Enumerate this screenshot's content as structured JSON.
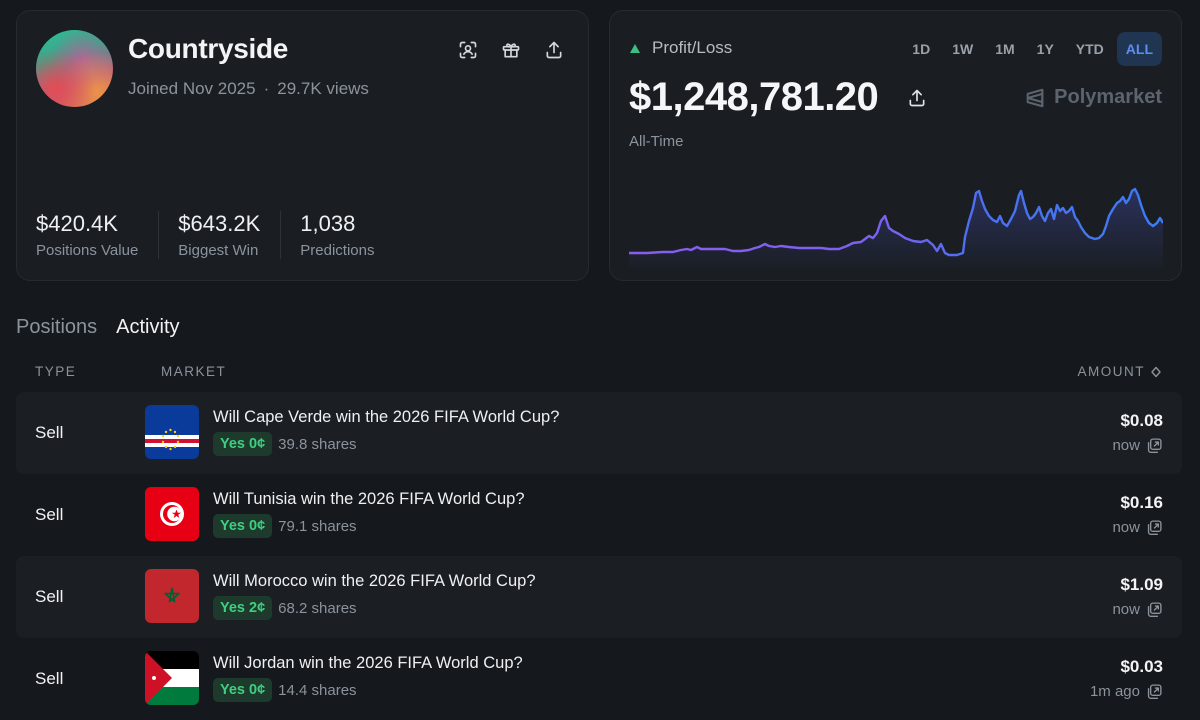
{
  "profile": {
    "name": "Countryside",
    "joined": "Joined Nov 2025",
    "separator": "·",
    "views": "29.7K views",
    "stats": [
      {
        "value": "$420.4K",
        "label": "Positions Value"
      },
      {
        "value": "$643.2K",
        "label": "Biggest Win"
      },
      {
        "value": "1,038",
        "label": "Predictions"
      }
    ],
    "actions": [
      "scan-icon",
      "gift-icon",
      "share-icon"
    ]
  },
  "pnl": {
    "label": "Profit/Loss",
    "amount": "$1,248,781.20",
    "period": "All-Time",
    "brand": "Polymarket",
    "ranges": [
      "1D",
      "1W",
      "1M",
      "1Y",
      "YTD",
      "ALL"
    ],
    "active_range": "ALL",
    "colors": {
      "line_start": "#8a5cf0",
      "line_end": "#3b7cf5",
      "up": "#3fbf7f"
    }
  },
  "tabs": [
    "Positions",
    "Activity"
  ],
  "active_tab": "Activity",
  "table": {
    "headers": {
      "type": "TYPE",
      "market": "MARKET",
      "amount": "AMOUNT"
    },
    "rows": [
      {
        "type": "Sell",
        "title": "Will Cape Verde win the 2026 FIFA World Cup?",
        "outcome": "Yes 0¢",
        "shares": "39.8 shares",
        "amount": "$0.08",
        "time": "now",
        "flag": "cape-verde-flag-icon"
      },
      {
        "type": "Sell",
        "title": "Will Tunisia win the 2026 FIFA World Cup?",
        "outcome": "Yes 0¢",
        "shares": "79.1 shares",
        "amount": "$0.16",
        "time": "now",
        "flag": "tunisia-flag-icon"
      },
      {
        "type": "Sell",
        "title": "Will Morocco win the 2026 FIFA World Cup?",
        "outcome": "Yes 2¢",
        "shares": "68.2 shares",
        "amount": "$1.09",
        "time": "now",
        "flag": "morocco-flag-icon"
      },
      {
        "type": "Sell",
        "title": "Will Jordan win the 2026 FIFA World Cup?",
        "outcome": "Yes 0¢",
        "shares": "14.4 shares",
        "amount": "$0.03",
        "time": "1m ago",
        "flag": "jordan-flag-icon"
      }
    ]
  }
}
